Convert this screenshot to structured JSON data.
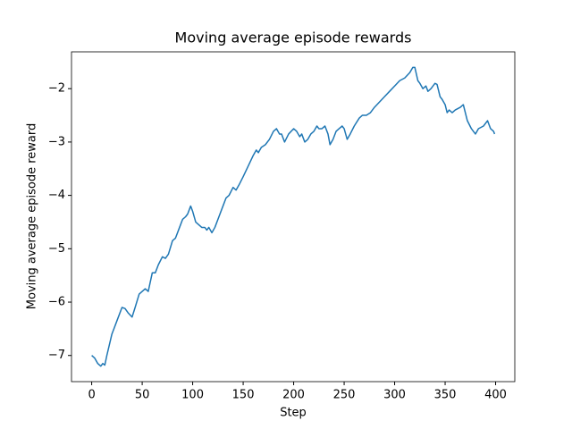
{
  "chart_data": {
    "type": "line",
    "title": "Moving average episode rewards",
    "x_label": "Step",
    "y_label": "Moving average episode reward",
    "x": [
      0,
      3,
      6,
      9,
      11,
      13,
      15,
      20,
      25,
      30,
      33,
      36,
      40,
      43,
      47,
      50,
      53,
      56,
      60,
      63,
      66,
      70,
      73,
      76,
      80,
      83,
      87,
      90,
      93,
      95,
      98,
      100,
      103,
      106,
      109,
      112,
      114,
      116,
      119,
      122,
      126,
      130,
      133,
      136,
      140,
      143,
      146,
      150,
      155,
      160,
      163,
      165,
      168,
      172,
      176,
      180,
      183,
      186,
      188,
      191,
      195,
      200,
      203,
      206,
      208,
      211,
      214,
      217,
      220,
      223,
      225,
      228,
      231,
      234,
      236,
      239,
      242,
      245,
      248,
      250,
      253,
      256,
      260,
      265,
      268,
      272,
      276,
      280,
      285,
      290,
      295,
      300,
      305,
      310,
      315,
      318,
      320,
      323,
      325,
      328,
      331,
      333,
      336,
      340,
      342,
      345,
      347,
      350,
      352,
      354,
      357,
      360,
      365,
      368,
      372,
      376,
      380,
      383,
      388,
      392,
      395,
      398,
      399
    ],
    "series": [
      {
        "name": "Moving average episode reward",
        "color": "#1f77b4",
        "values": [
          -7.0,
          -7.05,
          -7.15,
          -7.2,
          -7.15,
          -7.18,
          -7.0,
          -6.6,
          -6.35,
          -6.1,
          -6.12,
          -6.2,
          -6.28,
          -6.1,
          -5.85,
          -5.8,
          -5.75,
          -5.8,
          -5.45,
          -5.45,
          -5.3,
          -5.15,
          -5.18,
          -5.1,
          -4.85,
          -4.8,
          -4.6,
          -4.45,
          -4.4,
          -4.35,
          -4.2,
          -4.3,
          -4.5,
          -4.55,
          -4.6,
          -4.6,
          -4.65,
          -4.6,
          -4.7,
          -4.6,
          -4.4,
          -4.2,
          -4.05,
          -4.0,
          -3.85,
          -3.9,
          -3.8,
          -3.65,
          -3.45,
          -3.25,
          -3.15,
          -3.2,
          -3.1,
          -3.05,
          -2.95,
          -2.8,
          -2.75,
          -2.85,
          -2.85,
          -3.0,
          -2.85,
          -2.75,
          -2.8,
          -2.9,
          -2.85,
          -3.0,
          -2.95,
          -2.85,
          -2.8,
          -2.7,
          -2.75,
          -2.75,
          -2.7,
          -2.85,
          -3.05,
          -2.95,
          -2.8,
          -2.75,
          -2.7,
          -2.75,
          -2.95,
          -2.85,
          -2.7,
          -2.55,
          -2.5,
          -2.5,
          -2.45,
          -2.35,
          -2.25,
          -2.15,
          -2.05,
          -1.95,
          -1.85,
          -1.8,
          -1.7,
          -1.6,
          -1.6,
          -1.85,
          -1.9,
          -2.0,
          -1.95,
          -2.05,
          -2.0,
          -1.9,
          -1.92,
          -2.15,
          -2.2,
          -2.3,
          -2.45,
          -2.4,
          -2.45,
          -2.4,
          -2.35,
          -2.3,
          -2.6,
          -2.75,
          -2.85,
          -2.75,
          -2.7,
          -2.6,
          -2.75,
          -2.8,
          -2.85
        ]
      }
    ],
    "xlim": [
      -20,
      419
    ],
    "ylim": [
      -7.49,
      -1.31
    ],
    "xticks": [
      0,
      50,
      100,
      150,
      200,
      250,
      300,
      350,
      400
    ],
    "yticks": [
      {
        "value": -7,
        "label": "−7"
      },
      {
        "value": -6,
        "label": "−6"
      },
      {
        "value": -5,
        "label": "−5"
      },
      {
        "value": -4,
        "label": "−4"
      },
      {
        "value": -3,
        "label": "−3"
      },
      {
        "value": -2,
        "label": "−2"
      }
    ],
    "grid": false
  }
}
